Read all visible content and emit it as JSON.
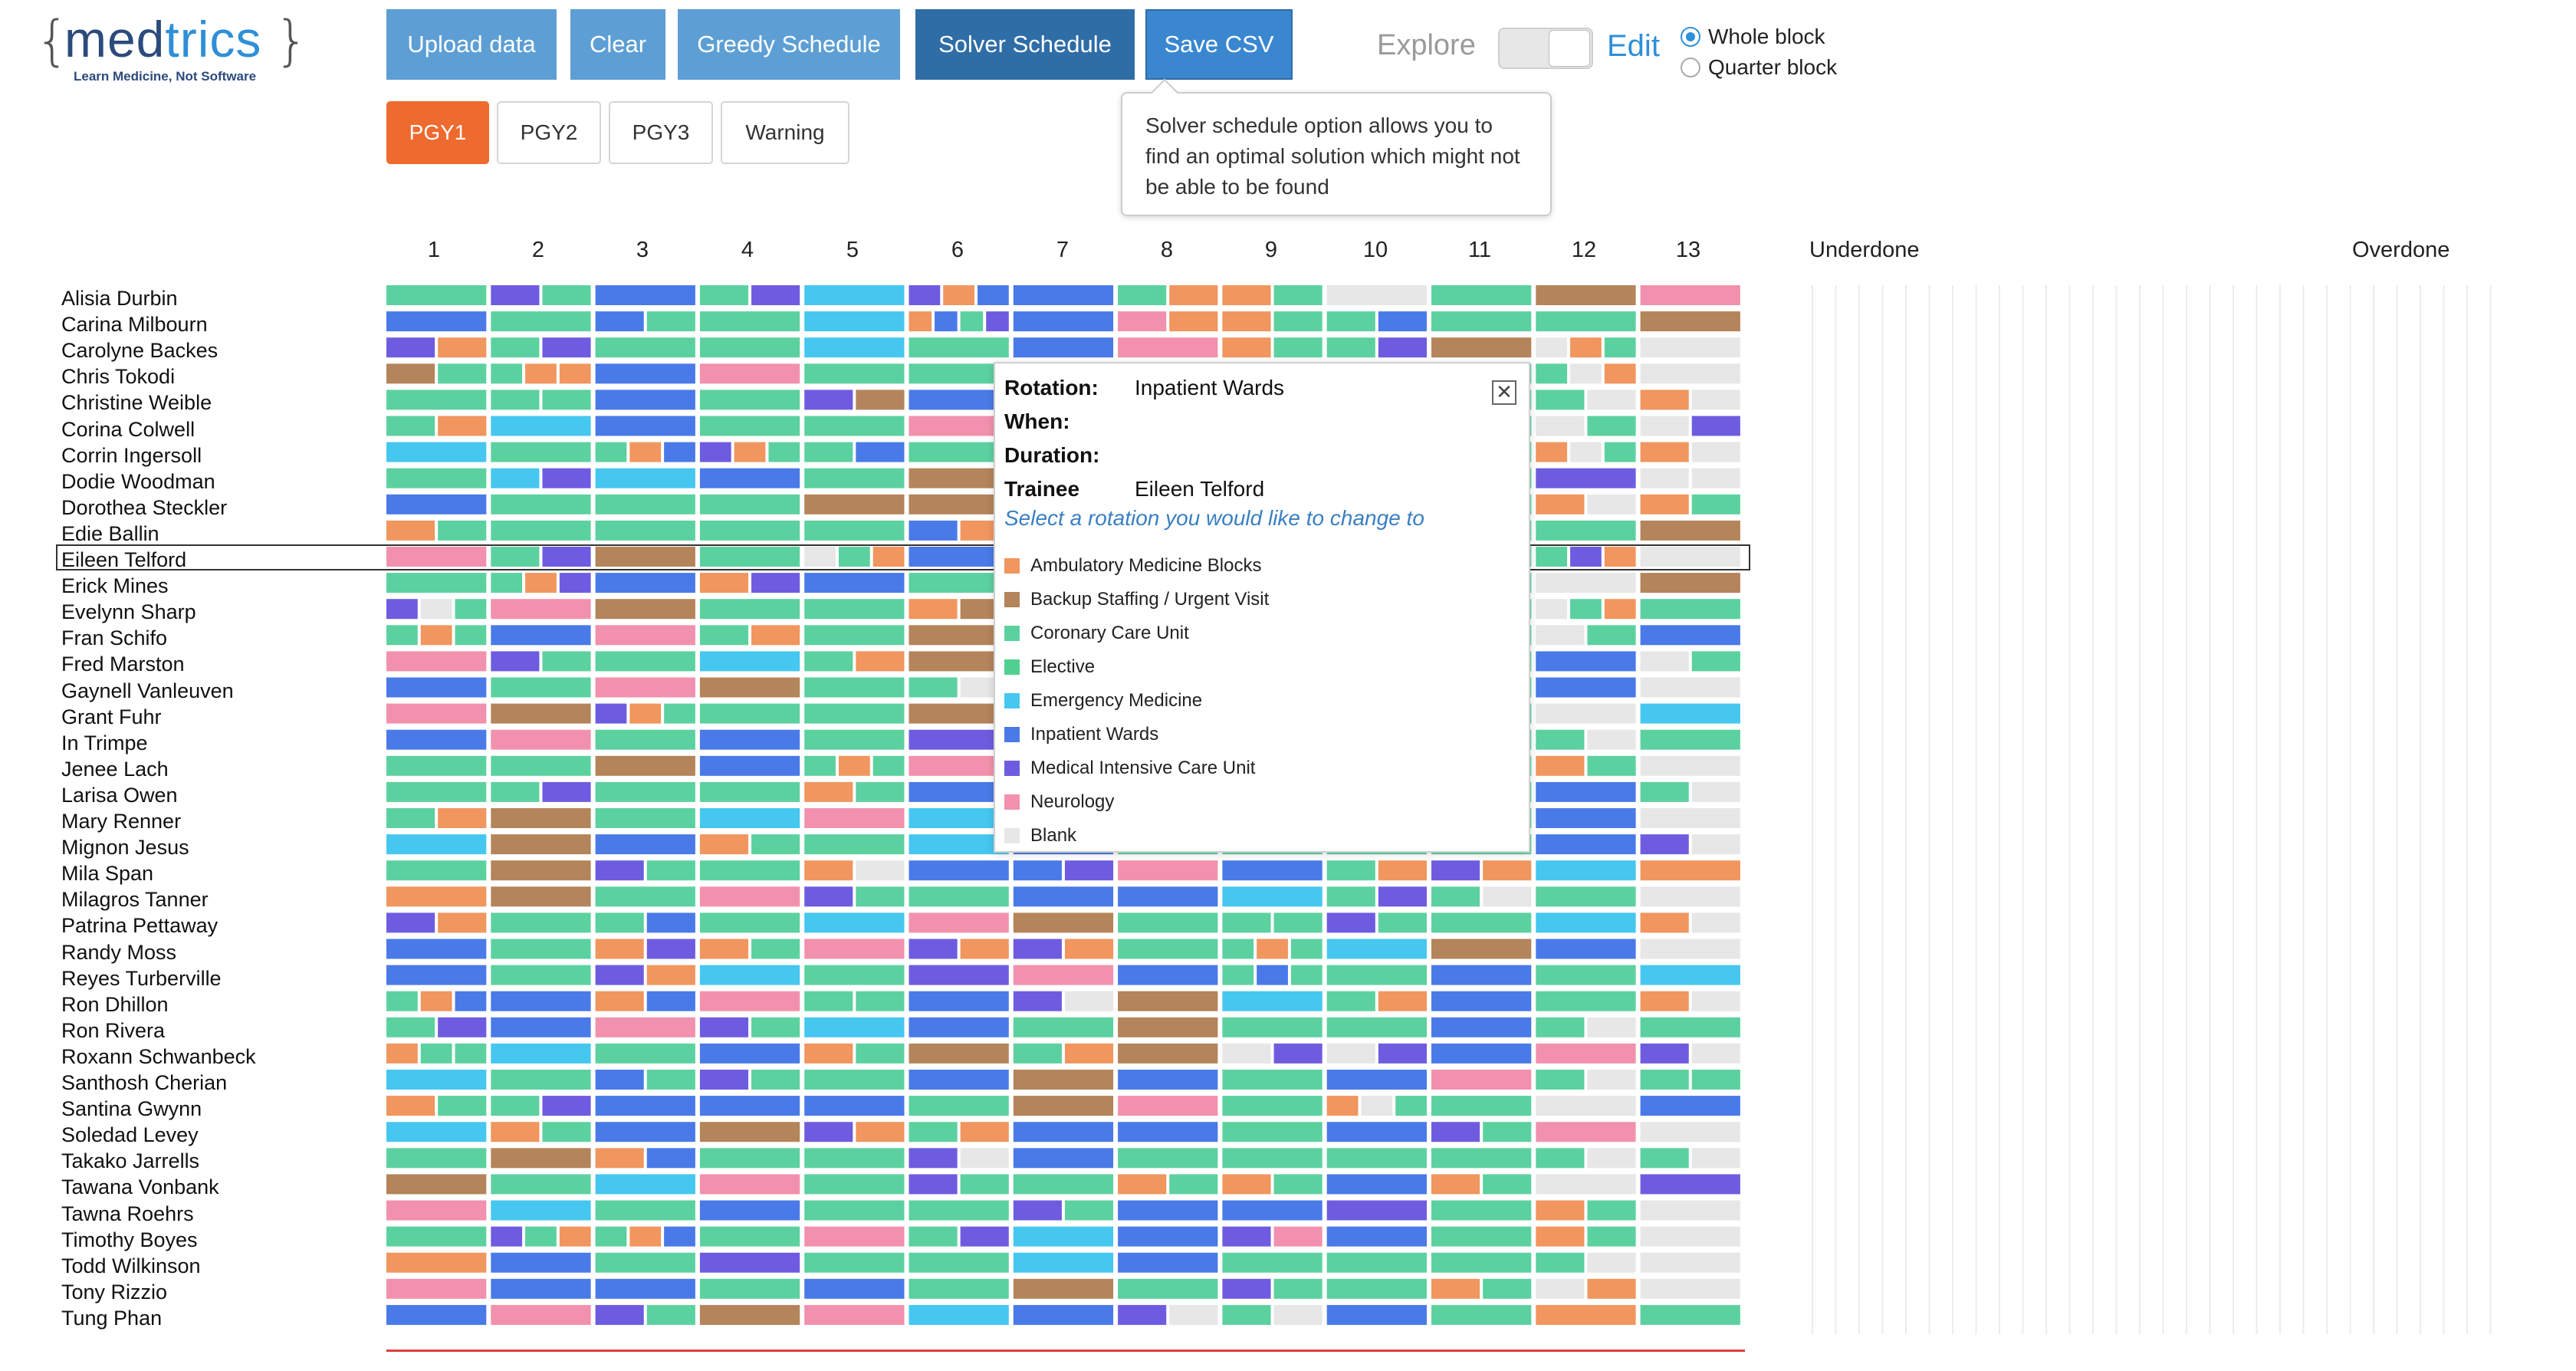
{
  "logo": {
    "open_brace": "{",
    "close_brace": "}",
    "part1": "med",
    "part2": "trics",
    "tagline": "Learn Medicine, Not Software"
  },
  "toolbar": {
    "upload": "Upload data",
    "clear": "Clear",
    "greedy": "Greedy Schedule",
    "solver": "Solver Schedule",
    "save": "Save CSV",
    "explore": "Explore",
    "edit": "Edit",
    "whole_block": "Whole block",
    "quarter_block": "Quarter block"
  },
  "tabs": [
    "PGY1",
    "PGY2",
    "PGY3",
    "Warning"
  ],
  "tooltip": {
    "text": "Solver schedule option allows you to find an optimal solution which might not be able to be found"
  },
  "blocks": [
    "1",
    "2",
    "3",
    "4",
    "5",
    "6",
    "7",
    "8",
    "9",
    "10",
    "11",
    "12",
    "13"
  ],
  "side_headers": {
    "underdone": "Underdone",
    "overdone": "Overdone"
  },
  "colors": {
    "A": "#f0965e",
    "B": "#b4845a",
    "C": "#5cd1a0",
    "E": "#4fd08f",
    "M": "#45c7f0",
    "W": "#4a7ae8",
    "I": "#6e5ce0",
    "N": "#f291ad",
    "X": "#e7e7e7"
  },
  "trainees": [
    "Alisia Durbin",
    "Carina Milbourn",
    "Carolyne Backes",
    "Chris Tokodi",
    "Christine Weible",
    "Corina Colwell",
    "Corrin Ingersoll",
    "Dodie Woodman",
    "Dorothea Steckler",
    "Edie Ballin",
    "Eileen Telford",
    "Erick Mines",
    "Evelynn Sharp",
    "Fran Schifo",
    "Fred Marston",
    "Gaynell Vanleuven",
    "Grant Fuhr",
    "In Trimpe",
    "Jenee Lach",
    "Larisa Owen",
    "Mary Renner",
    "Mignon Jesus",
    "Mila Span",
    "Milagros Tanner",
    "Patrina Pettaway",
    "Randy Moss",
    "Reyes Turberville",
    "Ron Dhillon",
    "Ron Rivera",
    "Roxann Schwanbeck",
    "Santhosh Cherian",
    "Santina Gwynn",
    "Soledad Levey",
    "Takako Jarrells",
    "Tawana Vonbank",
    "Tawna Roehrs",
    "Timothy Boyes",
    "Todd Wilkinson",
    "Tony Rizzio",
    "Tung Phan"
  ],
  "selected_trainee": "Eileen Telford",
  "popup": {
    "rotation_label": "Rotation:",
    "rotation_value": "Inpatient Wards",
    "when_label": "When:",
    "duration_label": "Duration:",
    "trainee_label": "Trainee",
    "trainee_value": "Eileen Telford",
    "hint": "Select a rotation you would like to change to",
    "options": [
      {
        "label": "Ambulatory Medicine Blocks",
        "color": "#f0965e"
      },
      {
        "label": "Backup Staffing / Urgent Visit",
        "color": "#b4845a"
      },
      {
        "label": "Coronary Care Unit",
        "color": "#5cd1a0"
      },
      {
        "label": "Elective",
        "color": "#4fd08f"
      },
      {
        "label": "Emergency Medicine",
        "color": "#45c7f0"
      },
      {
        "label": "Inpatient Wards",
        "color": "#4a7ae8"
      },
      {
        "label": "Medical Intensive Care Unit",
        "color": "#6e5ce0"
      },
      {
        "label": "Neurology",
        "color": "#f291ad"
      },
      {
        "label": "Blank",
        "color": "#e7e7e7"
      }
    ]
  },
  "schedule": [
    [
      "C",
      "IC",
      "W",
      "CI",
      "M",
      "IAW",
      "W",
      "CA",
      "AC",
      "X",
      "C",
      "B",
      "N"
    ],
    [
      "W",
      "C",
      "WC",
      "C",
      "M",
      "AWCI",
      "W",
      "NA",
      "AC",
      "CW",
      "C",
      "C",
      "B"
    ],
    [
      "IA",
      "CI",
      "C",
      "C",
      "M",
      "C",
      "W",
      "N",
      "AC",
      "CI",
      "B",
      "XAC",
      "X"
    ],
    [
      "BC",
      "CAA",
      "W",
      "N",
      "C",
      "C",
      "W",
      "N",
      "M",
      "C",
      "C",
      "CXA",
      "X"
    ],
    [
      "C",
      "CC",
      "W",
      "C",
      "IB",
      "W",
      "W",
      "C",
      "C",
      "C",
      "C",
      "CX",
      "AX"
    ],
    [
      "CA",
      "M",
      "W",
      "C",
      "C",
      "N",
      "W",
      "C",
      "C",
      "C",
      "C",
      "XC",
      "XI"
    ],
    [
      "M",
      "C",
      "CAW",
      "IAC",
      "CW",
      "C",
      "W",
      "C",
      "C",
      "C",
      "C",
      "AXC",
      "AX"
    ],
    [
      "C",
      "MI",
      "M",
      "W",
      "C",
      "B",
      "W",
      "C",
      "C",
      "C",
      "C",
      "I",
      "XX"
    ],
    [
      "W",
      "C",
      "C",
      "C",
      "B",
      "B",
      "W",
      "C",
      "C",
      "C",
      "C",
      "AX",
      "AC"
    ],
    [
      "AC",
      "C",
      "C",
      "C",
      "C",
      "WA",
      "W",
      "C",
      "C",
      "C",
      "C",
      "C",
      "B"
    ],
    [
      "N",
      "CI",
      "B",
      "C",
      "XCA",
      "W",
      "W",
      "C",
      "C",
      "C",
      "C",
      "CIA",
      "X"
    ],
    [
      "C",
      "CAI",
      "W",
      "AI",
      "W",
      "C",
      "W",
      "C",
      "C",
      "C",
      "C",
      "X",
      "B"
    ],
    [
      "IXC",
      "N",
      "B",
      "C",
      "C",
      "AB",
      "W",
      "C",
      "C",
      "C",
      "C",
      "XCA",
      "C"
    ],
    [
      "CAC",
      "W",
      "N",
      "CA",
      "C",
      "B",
      "W",
      "C",
      "C",
      "C",
      "C",
      "XC",
      "W"
    ],
    [
      "N",
      "IC",
      "C",
      "M",
      "CA",
      "B",
      "W",
      "C",
      "C",
      "C",
      "C",
      "W",
      "XC"
    ],
    [
      "W",
      "C",
      "N",
      "B",
      "C",
      "CX",
      "W",
      "C",
      "C",
      "C",
      "C",
      "W",
      "X"
    ],
    [
      "N",
      "B",
      "IAC",
      "C",
      "C",
      "B",
      "W",
      "C",
      "C",
      "C",
      "C",
      "X",
      "M"
    ],
    [
      "W",
      "N",
      "C",
      "W",
      "C",
      "I",
      "W",
      "C",
      "C",
      "C",
      "C",
      "CX",
      "C"
    ],
    [
      "C",
      "C",
      "B",
      "W",
      "CAC",
      "N",
      "W",
      "C",
      "C",
      "C",
      "C",
      "AC",
      "X"
    ],
    [
      "C",
      "CI",
      "C",
      "C",
      "AC",
      "W",
      "W",
      "C",
      "C",
      "C",
      "C",
      "W",
      "CX"
    ],
    [
      "CA",
      "B",
      "C",
      "M",
      "N",
      "M",
      "W",
      "C",
      "C",
      "C",
      "C",
      "W",
      "X"
    ],
    [
      "M",
      "B",
      "W",
      "AC",
      "C",
      "M",
      "W",
      "C",
      "C",
      "C",
      "C",
      "W",
      "IX"
    ],
    [
      "C",
      "B",
      "IC",
      "C",
      "AX",
      "W",
      "WI",
      "N",
      "W",
      "CA",
      "IA",
      "M",
      "A"
    ],
    [
      "A",
      "B",
      "C",
      "N",
      "IC",
      "C",
      "W",
      "W",
      "M",
      "CI",
      "CX",
      "C",
      "X"
    ],
    [
      "IA",
      "C",
      "CW",
      "C",
      "M",
      "N",
      "B",
      "C",
      "CC",
      "IC",
      "C",
      "M",
      "AX"
    ],
    [
      "W",
      "C",
      "AI",
      "AC",
      "N",
      "IA",
      "IA",
      "C",
      "CAC",
      "M",
      "B",
      "W",
      "X"
    ],
    [
      "W",
      "C",
      "IA",
      "M",
      "C",
      "I",
      "N",
      "W",
      "CWC",
      "C",
      "W",
      "C",
      "M"
    ],
    [
      "CAW",
      "W",
      "AW",
      "N",
      "CC",
      "W",
      "IX",
      "B",
      "M",
      "CA",
      "W",
      "C",
      "AX"
    ],
    [
      "CI",
      "W",
      "N",
      "IC",
      "M",
      "W",
      "C",
      "B",
      "C",
      "C",
      "W",
      "CX",
      "C"
    ],
    [
      "ACC",
      "M",
      "C",
      "W",
      "AC",
      "B",
      "CA",
      "B",
      "XI",
      "XI",
      "W",
      "N",
      "IX"
    ],
    [
      "M",
      "C",
      "WC",
      "IC",
      "C",
      "W",
      "B",
      "W",
      "C",
      "W",
      "N",
      "CX",
      "CC"
    ],
    [
      "AC",
      "CI",
      "W",
      "W",
      "W",
      "C",
      "B",
      "N",
      "C",
      "AXC",
      "C",
      "X",
      "W"
    ],
    [
      "M",
      "AC",
      "W",
      "B",
      "IA",
      "CA",
      "W",
      "W",
      "C",
      "W",
      "IC",
      "N",
      "X"
    ],
    [
      "C",
      "B",
      "AW",
      "C",
      "C",
      "IX",
      "W",
      "C",
      "C",
      "C",
      "C",
      "CX",
      "CX"
    ],
    [
      "B",
      "C",
      "M",
      "N",
      "C",
      "IC",
      "C",
      "AC",
      "AC",
      "W",
      "AC",
      "X",
      "I"
    ],
    [
      "N",
      "M",
      "C",
      "W",
      "C",
      "C",
      "IC",
      "W",
      "W",
      "I",
      "C",
      "AC",
      "X"
    ],
    [
      "C",
      "ICA",
      "CAW",
      "C",
      "N",
      "CI",
      "M",
      "W",
      "IN",
      "W",
      "C",
      "AC",
      "X"
    ],
    [
      "A",
      "W",
      "C",
      "I",
      "C",
      "C",
      "M",
      "W",
      "C",
      "C",
      "C",
      "CX",
      "X"
    ],
    [
      "N",
      "W",
      "W",
      "C",
      "W",
      "C",
      "B",
      "C",
      "IC",
      "C",
      "AC",
      "XA",
      "X"
    ],
    [
      "W",
      "N",
      "IC",
      "B",
      "N",
      "M",
      "W",
      "IX",
      "CX",
      "W",
      "C",
      "A",
      "C"
    ]
  ]
}
